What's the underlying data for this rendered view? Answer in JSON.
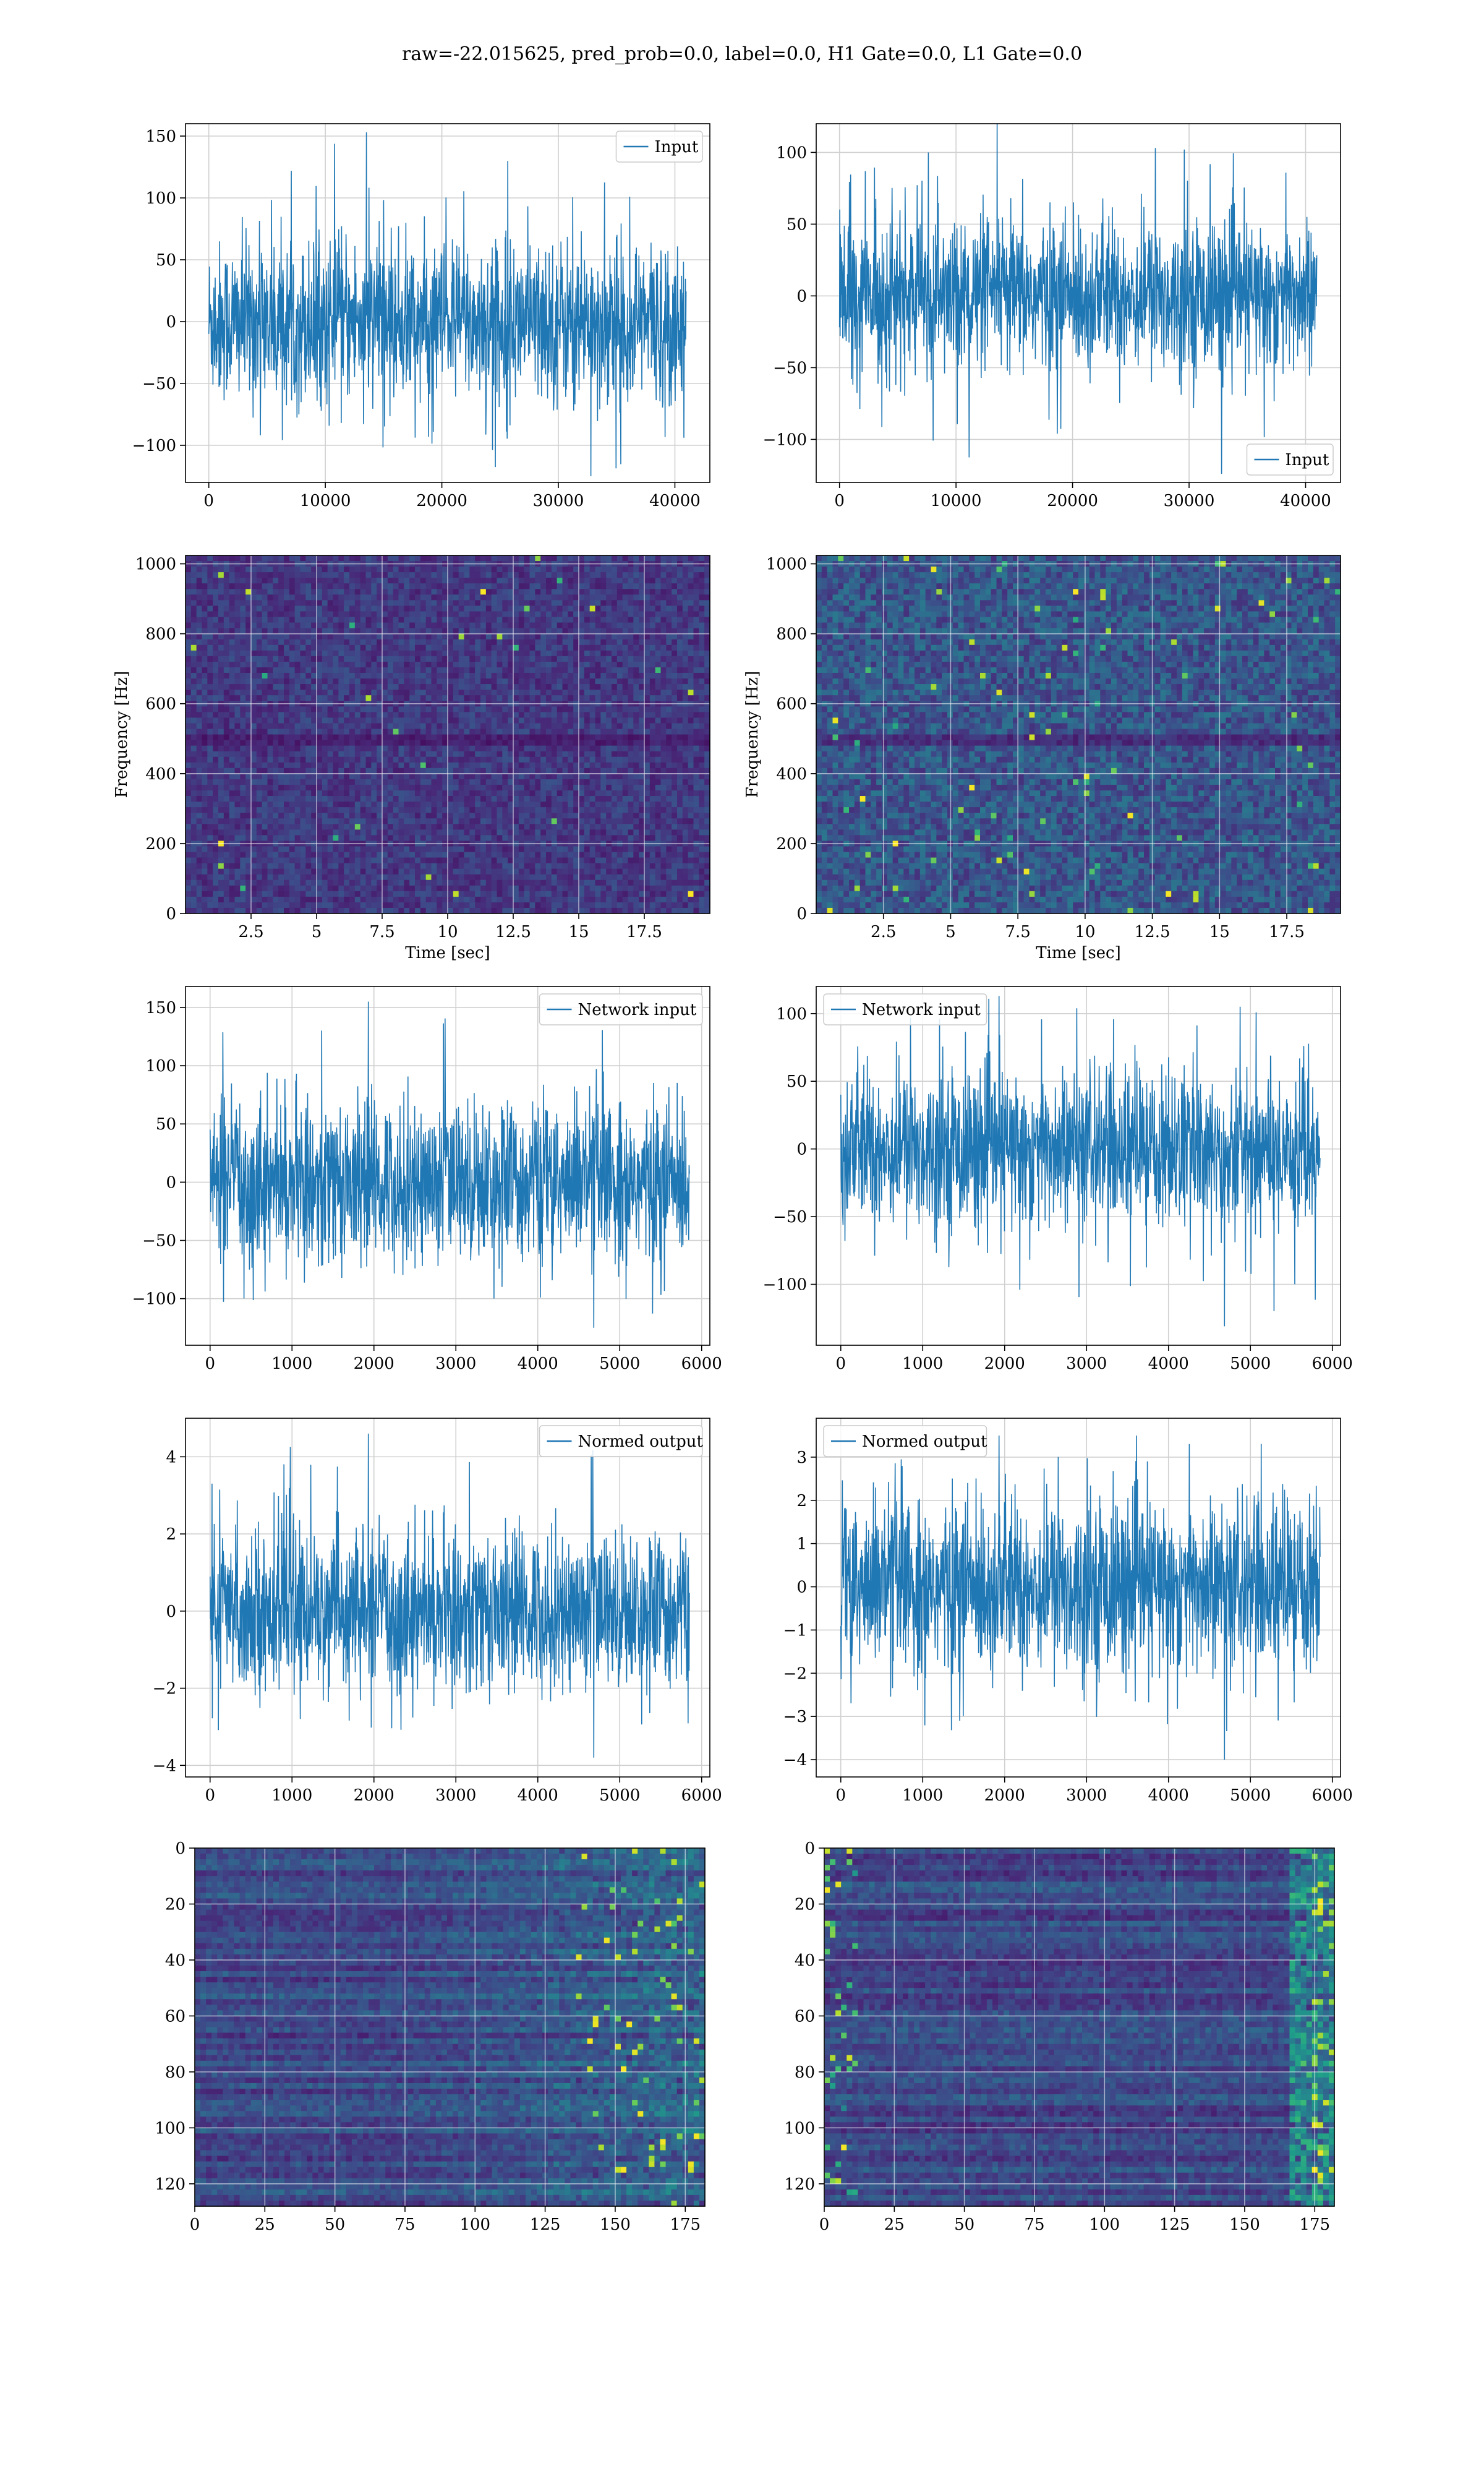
{
  "figure": {
    "title": "raw=-22.015625, pred_prob=0.0, label=0.0, H1 Gate=0.0, L1 Gate=0.0"
  },
  "colors": {
    "line": "#1f77b4",
    "grid": "#d0d0d0",
    "viridis": [
      "#440154",
      "#482878",
      "#3e4989",
      "#31688e",
      "#26828e",
      "#1f9e89",
      "#35b779",
      "#6ece58",
      "#b5de2b",
      "#fde725"
    ]
  },
  "chart_data": [
    {
      "type": "line",
      "panel": "input-h1",
      "legend": [
        "Input"
      ],
      "legend_position": "top-right",
      "series": [
        {
          "name": "Input",
          "n_points": 40960,
          "min": -125,
          "max": 153,
          "std": 32
        }
      ],
      "xlim": [
        -2000,
        43000
      ],
      "ylim": [
        -130,
        160
      ],
      "xticks": [
        0,
        10000,
        20000,
        30000,
        40000
      ],
      "yticks": [
        -100,
        -50,
        0,
        50,
        100,
        150
      ],
      "xlabel": "",
      "ylabel": "",
      "grid": true
    },
    {
      "type": "line",
      "panel": "input-l1",
      "legend": [
        "Input"
      ],
      "legend_position": "bottom-right",
      "series": [
        {
          "name": "Input",
          "n_points": 40960,
          "min": -124,
          "max": 120,
          "std": 26
        }
      ],
      "xlim": [
        -2000,
        43000
      ],
      "ylim": [
        -130,
        120
      ],
      "xticks": [
        0,
        10000,
        20000,
        30000,
        40000
      ],
      "yticks": [
        -100,
        -50,
        0,
        50,
        100
      ],
      "xlabel": "",
      "ylabel": "",
      "grid": true
    },
    {
      "type": "heatmap",
      "panel": "spectrogram-h1",
      "xlim": [
        0,
        20
      ],
      "ylim": [
        0,
        1024
      ],
      "xticks": [
        2.5,
        5.0,
        7.5,
        10.0,
        12.5,
        15.0,
        17.5
      ],
      "yticks": [
        0,
        200,
        400,
        600,
        800,
        1000
      ],
      "xlabel": "Time [sec]",
      "ylabel": "Frequency [Hz]",
      "colormap": "viridis",
      "grid": true,
      "intensity": "low"
    },
    {
      "type": "heatmap",
      "panel": "spectrogram-l1",
      "xlim": [
        0,
        19.5
      ],
      "ylim": [
        0,
        1024
      ],
      "xticks": [
        2.5,
        5.0,
        7.5,
        10.0,
        12.5,
        15.0,
        17.5
      ],
      "yticks": [
        0,
        200,
        400,
        600,
        800,
        1000
      ],
      "xlabel": "Time [sec]",
      "ylabel": "Frequency [Hz]",
      "colormap": "viridis",
      "grid": true,
      "intensity": "medium"
    },
    {
      "type": "line",
      "panel": "network-input-h1",
      "legend": [
        "Network input"
      ],
      "legend_position": "top-right",
      "series": [
        {
          "name": "Network input",
          "n_points": 5850,
          "min": -125,
          "max": 155,
          "std": 34
        }
      ],
      "xlim": [
        -300,
        6100
      ],
      "ylim": [
        -140,
        168
      ],
      "xticks": [
        0,
        1000,
        2000,
        3000,
        4000,
        5000,
        6000
      ],
      "yticks": [
        -100,
        -50,
        0,
        50,
        100,
        150
      ],
      "xlabel": "",
      "ylabel": "",
      "grid": true
    },
    {
      "type": "line",
      "panel": "network-input-l1",
      "legend": [
        "Network input"
      ],
      "legend_position": "top-left",
      "series": [
        {
          "name": "Network input",
          "n_points": 5850,
          "min": -131,
          "max": 113,
          "std": 29
        }
      ],
      "xlim": [
        -300,
        6100
      ],
      "ylim": [
        -145,
        120
      ],
      "xticks": [
        0,
        1000,
        2000,
        3000,
        4000,
        5000,
        6000
      ],
      "yticks": [
        -100,
        -50,
        0,
        50,
        100
      ],
      "xlabel": "",
      "ylabel": "",
      "grid": true
    },
    {
      "type": "line",
      "panel": "normed-output-h1",
      "legend": [
        "Normed output"
      ],
      "legend_position": "top-right",
      "series": [
        {
          "name": "Normed output",
          "n_points": 5850,
          "min": -3.8,
          "max": 4.6,
          "std": 1.0
        }
      ],
      "xlim": [
        -300,
        6100
      ],
      "ylim": [
        -4.3,
        5.0
      ],
      "xticks": [
        0,
        1000,
        2000,
        3000,
        4000,
        5000,
        6000
      ],
      "yticks": [
        -4,
        -2,
        0,
        2,
        4
      ],
      "xlabel": "",
      "ylabel": "",
      "grid": true
    },
    {
      "type": "line",
      "panel": "normed-output-l1",
      "legend": [
        "Normed output"
      ],
      "legend_position": "top-left",
      "series": [
        {
          "name": "Normed output",
          "n_points": 5850,
          "min": -4.0,
          "max": 3.5,
          "std": 1.0
        }
      ],
      "xlim": [
        -300,
        6100
      ],
      "ylim": [
        -4.4,
        3.9
      ],
      "xticks": [
        0,
        1000,
        2000,
        3000,
        4000,
        5000,
        6000
      ],
      "yticks": [
        -4,
        -3,
        -2,
        -1,
        0,
        1,
        2,
        3
      ],
      "xlabel": "",
      "ylabel": "",
      "grid": true
    },
    {
      "type": "heatmap",
      "panel": "feature-map-h1",
      "rows": 128,
      "cols": 182,
      "xlim": [
        0,
        182
      ],
      "ylim": [
        128,
        0
      ],
      "xticks": [
        0,
        25,
        50,
        75,
        100,
        125,
        150,
        175
      ],
      "yticks": [
        0,
        20,
        40,
        60,
        80,
        100,
        120
      ],
      "colormap": "viridis",
      "grid": true,
      "hot_region": "right"
    },
    {
      "type": "heatmap",
      "panel": "feature-map-l1",
      "rows": 128,
      "cols": 182,
      "xlim": [
        0,
        182
      ],
      "ylim": [
        128,
        0
      ],
      "xticks": [
        0,
        25,
        50,
        75,
        100,
        125,
        150,
        175
      ],
      "yticks": [
        0,
        20,
        40,
        60,
        80,
        100,
        120
      ],
      "colormap": "viridis",
      "grid": true,
      "hot_region": "edges"
    }
  ]
}
